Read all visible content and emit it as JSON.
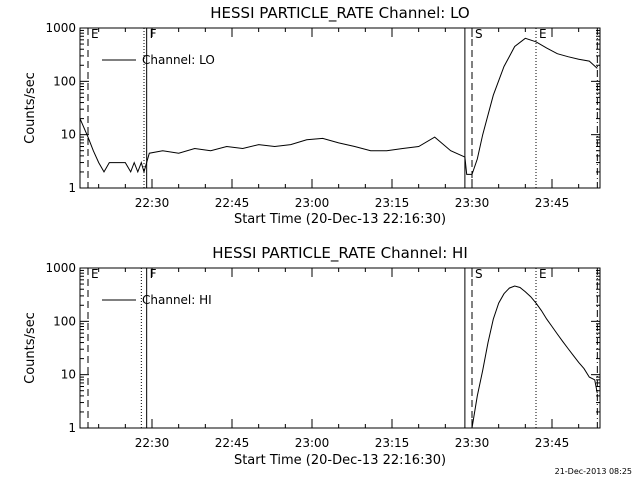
{
  "timestamp": "21-Dec-2013 08:25",
  "chart_data": [
    {
      "type": "line",
      "title": "HESSI PARTICLE_RATE Channel: LO",
      "xlabel": "Start Time (20-Dec-13 22:16:30)",
      "ylabel": "Counts/sec",
      "y_scale": "log",
      "ylim": [
        1,
        1000
      ],
      "xlim": [
        "22:16:30",
        "23:54:00"
      ],
      "x_ticks": [
        "22:30",
        "22:45",
        "23:00",
        "23:15",
        "23:30",
        "23:45"
      ],
      "y_ticks": [
        "1",
        "10",
        "100",
        "1000"
      ],
      "legend_placement": "top-left",
      "series": [
        {
          "name": "Channel: LO",
          "x": [
            "22:16:30",
            "22:18:00",
            "22:19:00",
            "22:20:00",
            "22:21:00",
            "22:22:00",
            "22:23:00",
            "22:24:00",
            "22:25:00",
            "22:26:00",
            "22:26:40",
            "22:27:20",
            "22:28:00",
            "22:28:30",
            "22:29:30",
            "22:32:00",
            "22:35:00",
            "22:38:00",
            "22:41:00",
            "22:44:00",
            "22:47:00",
            "22:50:00",
            "22:53:00",
            "22:56:00",
            "22:59:00",
            "23:02:00",
            "23:05:00",
            "23:08:00",
            "23:11:00",
            "23:14:00",
            "23:17:00",
            "23:20:00",
            "23:23:00",
            "23:26:00",
            "23:28:40",
            "23:29:00",
            "23:30:00",
            "23:31:00",
            "23:32:00",
            "23:34:00",
            "23:36:00",
            "23:38:00",
            "23:40:00",
            "23:42:00",
            "23:44:00",
            "23:46:00",
            "23:48:00",
            "23:50:00",
            "23:52:00",
            "23:53:30"
          ],
          "y": [
            20,
            9,
            5,
            3,
            2,
            3,
            3,
            3,
            3,
            2,
            3,
            2,
            3,
            2,
            4.5,
            5,
            4.5,
            5.5,
            5,
            6,
            5.5,
            6.5,
            6,
            6.5,
            8,
            8.5,
            7,
            6,
            5,
            5,
            5.5,
            6,
            9,
            5,
            3.8,
            1.8,
            1.8,
            3.5,
            10,
            55,
            190,
            450,
            640,
            550,
            420,
            330,
            290,
            260,
            240,
            175
          ]
        }
      ],
      "markers": [
        {
          "label": "E",
          "time": "22:18:00",
          "style": "dashed"
        },
        {
          "label": "",
          "time": "22:28:30",
          "style": "dotted"
        },
        {
          "label": "F",
          "time": "22:29:00",
          "style": "solid"
        },
        {
          "label": "",
          "time": "23:28:40",
          "style": "solid"
        },
        {
          "label": "S",
          "time": "23:30:00",
          "style": "dashed"
        },
        {
          "label": "E",
          "time": "23:42:00",
          "style": "dotted"
        },
        {
          "label": "",
          "time": "23:53:30",
          "style": "dashdot"
        }
      ]
    },
    {
      "type": "line",
      "title": "HESSI PARTICLE_RATE Channel: HI",
      "xlabel": "Start Time (20-Dec-13 22:16:30)",
      "ylabel": "Counts/sec",
      "y_scale": "log",
      "ylim": [
        1,
        1000
      ],
      "xlim": [
        "22:16:30",
        "23:54:00"
      ],
      "x_ticks": [
        "22:30",
        "22:45",
        "23:00",
        "23:15",
        "23:30",
        "23:45"
      ],
      "y_ticks": [
        "1",
        "10",
        "100",
        "1000"
      ],
      "legend_placement": "top-left",
      "series": [
        {
          "name": "Channel: HI",
          "x": [
            "23:30:00",
            "23:31:00",
            "23:32:00",
            "23:33:00",
            "23:34:00",
            "23:35:00",
            "23:36:00",
            "23:37:00",
            "23:38:00",
            "23:39:00",
            "23:40:00",
            "23:41:00",
            "23:42:00",
            "23:43:00",
            "23:44:00",
            "23:45:00",
            "23:46:00",
            "23:47:00",
            "23:48:00",
            "23:49:00",
            "23:50:00",
            "23:51:00",
            "23:52:00",
            "23:53:00",
            "23:53:30"
          ],
          "y": [
            1,
            4,
            12,
            40,
            110,
            220,
            330,
            420,
            460,
            430,
            360,
            290,
            220,
            160,
            110,
            80,
            58,
            42,
            31,
            23,
            17,
            13,
            9,
            8,
            4.5
          ]
        }
      ],
      "markers": [
        {
          "label": "E",
          "time": "22:18:00",
          "style": "dashed"
        },
        {
          "label": "",
          "time": "22:28:00",
          "style": "dotted"
        },
        {
          "label": "F",
          "time": "22:29:00",
          "style": "solid"
        },
        {
          "label": "",
          "time": "23:28:40",
          "style": "solid"
        },
        {
          "label": "S",
          "time": "23:30:00",
          "style": "dashed"
        },
        {
          "label": "E",
          "time": "23:42:00",
          "style": "dotted"
        },
        {
          "label": "",
          "time": "23:53:30",
          "style": "dashdot"
        }
      ]
    }
  ]
}
